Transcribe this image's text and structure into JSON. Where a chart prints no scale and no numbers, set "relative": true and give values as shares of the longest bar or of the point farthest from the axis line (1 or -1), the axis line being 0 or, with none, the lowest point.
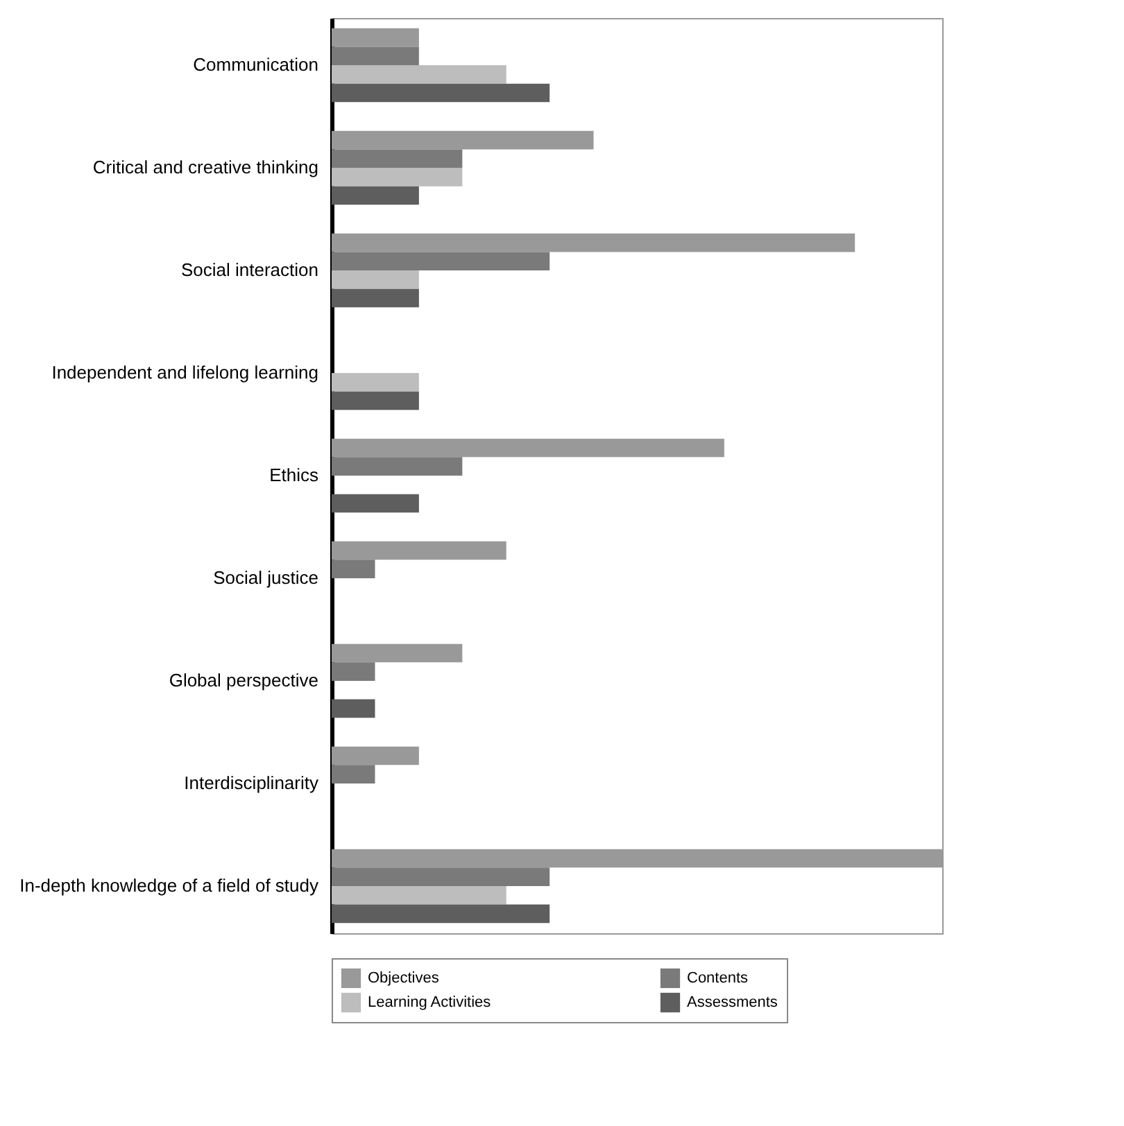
{
  "chart_data": {
    "type": "bar",
    "orientation": "horizontal",
    "relative": true,
    "legend": "bottom",
    "categories": [
      "Communication",
      "Critical and creative thinking",
      "Social interaction",
      "Independent and lifelong learning",
      "Ethics",
      "Social justice",
      "Global perspective",
      "Interdisciplinarity",
      "In-depth knowledge of a field of study"
    ],
    "series": [
      {
        "name": "Objectives",
        "color": "#999999",
        "values": [
          0.143,
          0.429,
          0.857,
          0,
          0.643,
          0.286,
          0.214,
          0.143,
          1
        ]
      },
      {
        "name": "Contents",
        "color": "#7a7a7a",
        "values": [
          0.143,
          0.214,
          0.357,
          0,
          0.214,
          0.071,
          0.071,
          0.071,
          0.357
        ]
      },
      {
        "name": "Learning Activities",
        "color": "#bdbdbd",
        "values": [
          0.286,
          0.214,
          0.143,
          0.143,
          0,
          0,
          0,
          0,
          0.286
        ]
      },
      {
        "name": "Assessments",
        "color": "#5e5e5e",
        "values": [
          0.357,
          0.143,
          0.143,
          0.143,
          0.143,
          0,
          0.071,
          0,
          0.357
        ]
      }
    ]
  }
}
